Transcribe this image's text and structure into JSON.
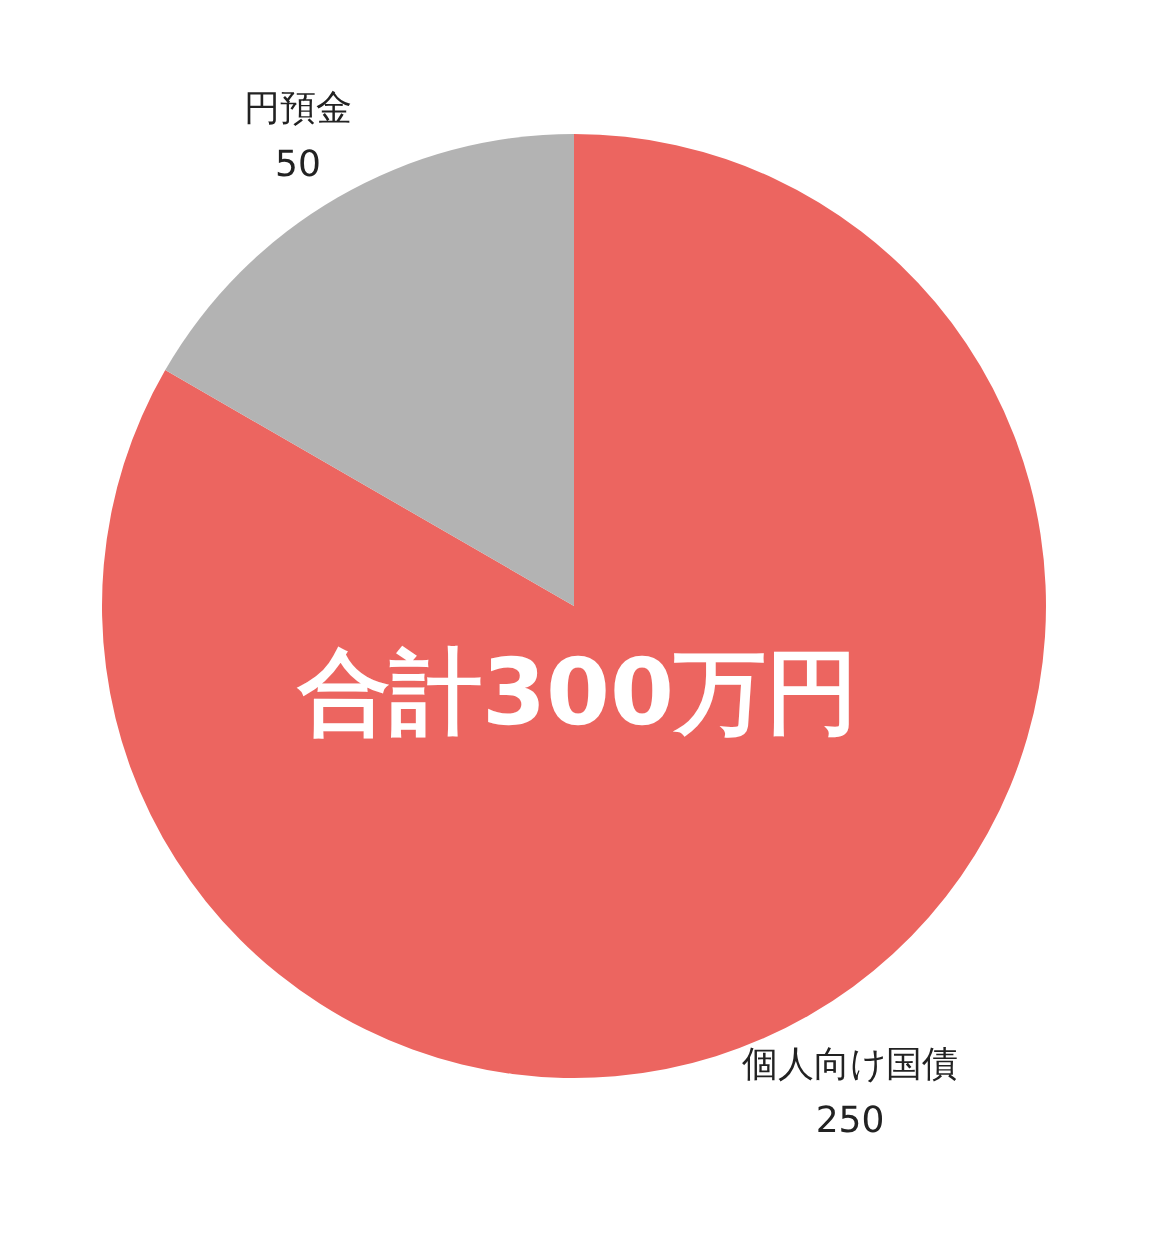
{
  "chart_data": {
    "type": "pie",
    "categories": [
      "個人向け国債",
      "円預金"
    ],
    "values": [
      250,
      50
    ],
    "colors": [
      "#ec6560",
      "#b3b3b3"
    ],
    "data_labels": true,
    "annotations": [
      "合計300万円"
    ]
  }
}
